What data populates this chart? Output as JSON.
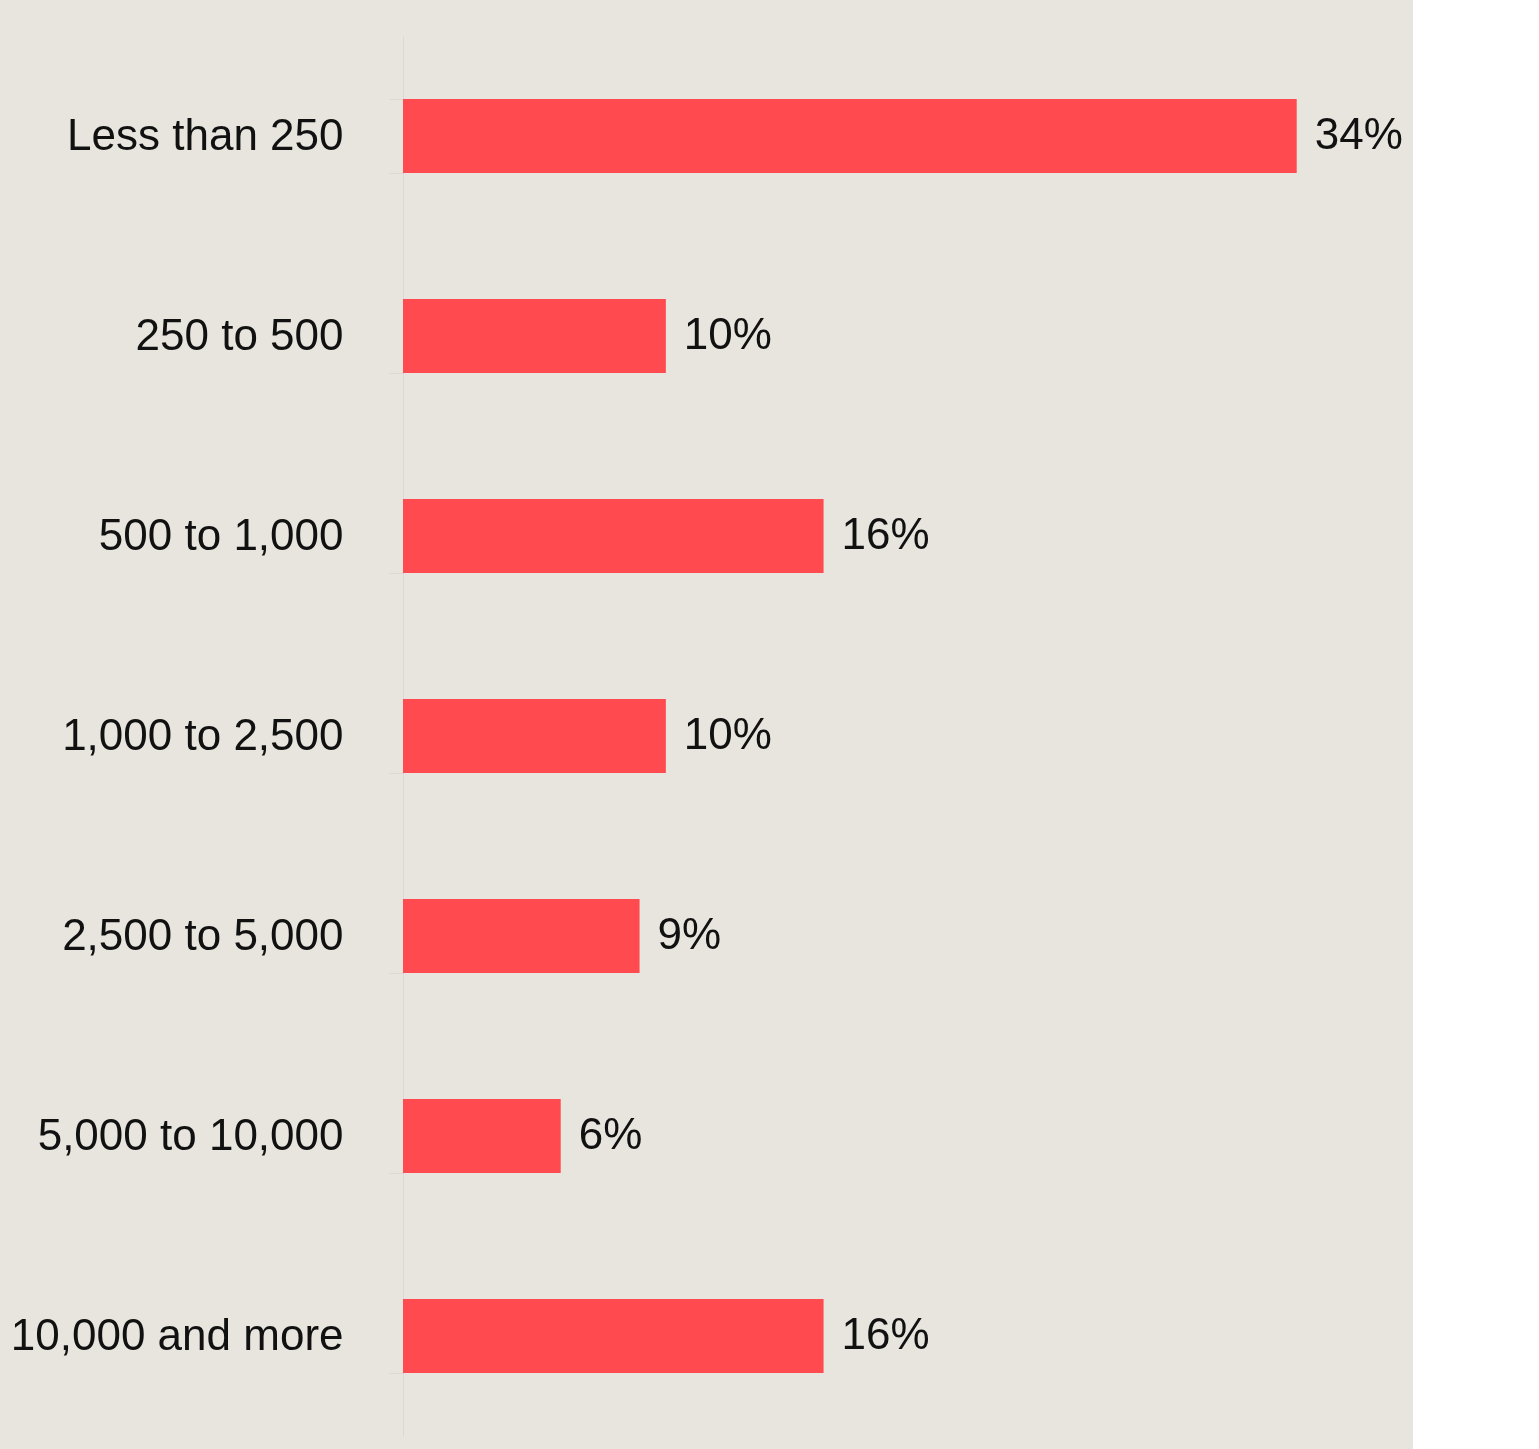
{
  "chart_data": {
    "type": "bar",
    "orientation": "horizontal",
    "categories": [
      "Less than 250",
      "250 to 500",
      "500 to 1,000",
      "1,000 to 2,500",
      "2,500 to 5,000",
      "5,000 to 10,000",
      "10,000 and more"
    ],
    "values": [
      34,
      10,
      16,
      10,
      9,
      6,
      16
    ],
    "value_labels": [
      "34%",
      "10%",
      "16%",
      "10%",
      "9%",
      "6%",
      "16%"
    ],
    "color": "#ff4b4f"
  }
}
